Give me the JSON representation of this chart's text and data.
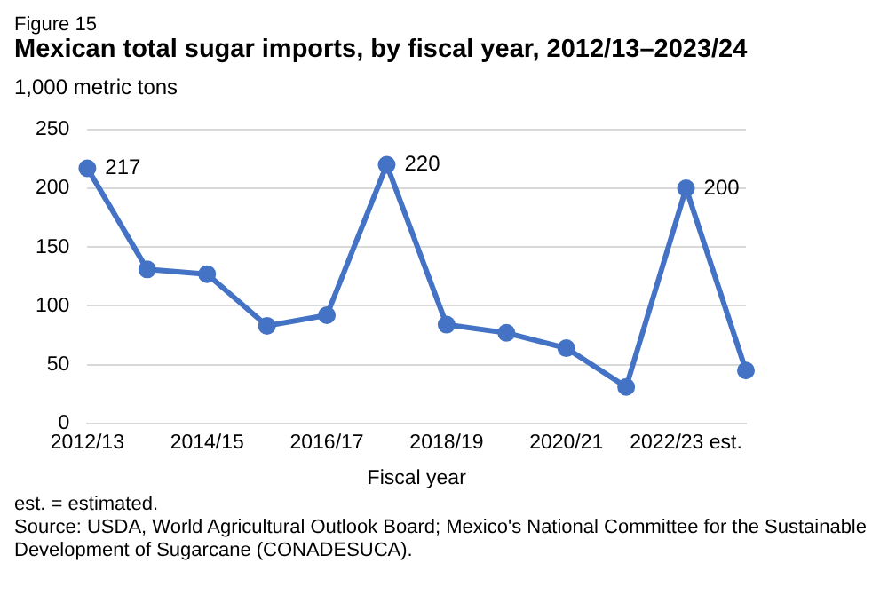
{
  "chart_data": {
    "type": "line",
    "subtitle": "Figure 15",
    "title": "Mexican total sugar imports, by fiscal year, 2012/13–2023/24",
    "ylabel": "1,000 metric tons",
    "xlabel": "Fiscal year",
    "categories": [
      "2012/13",
      null,
      "2014/15",
      null,
      "2016/17",
      null,
      "2018/19",
      null,
      "2020/21",
      null,
      "2022/23 est.",
      null
    ],
    "series": [
      {
        "color": "#4472c4",
        "values": [
          217,
          131,
          127,
          83,
          92,
          220,
          84,
          77,
          64,
          31,
          200,
          45
        ],
        "value_labels": [
          "217",
          null,
          null,
          null,
          null,
          "220",
          null,
          null,
          null,
          null,
          "200",
          null
        ]
      }
    ],
    "ylim": [
      0,
      250
    ],
    "yticks": [
      0,
      50,
      100,
      150,
      200,
      250
    ],
    "grid": "y",
    "legend": false,
    "marker": "circle",
    "annotations": [
      "est. = estimated.",
      "Source: USDA, World Agricultural Outlook Board; Mexico's National Committee  for the Sustainable Development of Sugarcane (CONADESUCA)."
    ]
  }
}
